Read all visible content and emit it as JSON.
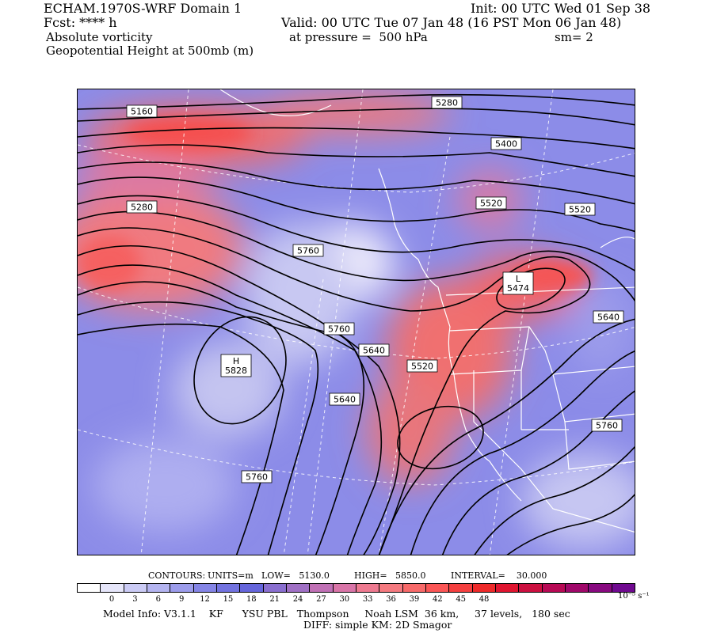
{
  "header": {
    "model_title": "ECHAM.1970S-WRF Domain 1",
    "init": "Init: 00 UTC Wed 01 Sep 38",
    "fcst": "Fcst: **** h",
    "valid": "Valid: 00 UTC Tue 07 Jan 48 (16 PST Mon 06 Jan 48)",
    "field1": "Absolute vorticity",
    "pressure": "at pressure =  500 hPa",
    "smoothing": "sm= 2",
    "field2": "Geopotential Height at 500mb (m)"
  },
  "map": {
    "contour_labels": [
      {
        "text": "5160"
      },
      {
        "text": "5280"
      },
      {
        "text": "5400"
      },
      {
        "text": "5280"
      },
      {
        "text": "5520"
      },
      {
        "text": "5520"
      },
      {
        "text": "5760"
      },
      {
        "text": "5760"
      },
      {
        "text": "5640"
      },
      {
        "text": "5640"
      },
      {
        "text": "5520"
      },
      {
        "text": "5640"
      },
      {
        "text": "5760"
      },
      {
        "text": "5760"
      }
    ],
    "low_center": {
      "letter": "L",
      "value": "5474"
    },
    "high_center": {
      "letter": "H",
      "value": "5828"
    }
  },
  "contour_info": {
    "label": "CONTOURS:",
    "units": "UNITS=m",
    "low": "LOW=   5130.0",
    "high": "HIGH=   5850.0",
    "interval": "INTERVAL=    30.000"
  },
  "colorbar": {
    "colors": [
      "#ffffff",
      "#e6e6fa",
      "#cbcbf5",
      "#b4b4f0",
      "#9c9ceb",
      "#8585e6",
      "#7373e0",
      "#6666dc",
      "#8a6fd0",
      "#a070c5",
      "#c070b5",
      "#d975a8",
      "#ee7a90",
      "#f57a80",
      "#f86a6a",
      "#fb5656",
      "#f54040",
      "#ee2a2a",
      "#e01530",
      "#cc1040",
      "#b80a55",
      "#a0086a",
      "#880a80",
      "#700a90"
    ],
    "ticks": [
      "0",
      "3",
      "6",
      "9",
      "12",
      "15",
      "18",
      "21",
      "24",
      "27",
      "30",
      "33",
      "36",
      "39",
      "42",
      "45",
      "48"
    ],
    "units": "10⁻⁵ s⁻¹"
  },
  "footer": {
    "model_info": "Model Info: V3.1.1    KF      YSU PBL   Thompson     Noah LSM  36 km,     37 levels,   180 sec",
    "diff": "DIFF: simple KM: 2D Smagor"
  }
}
